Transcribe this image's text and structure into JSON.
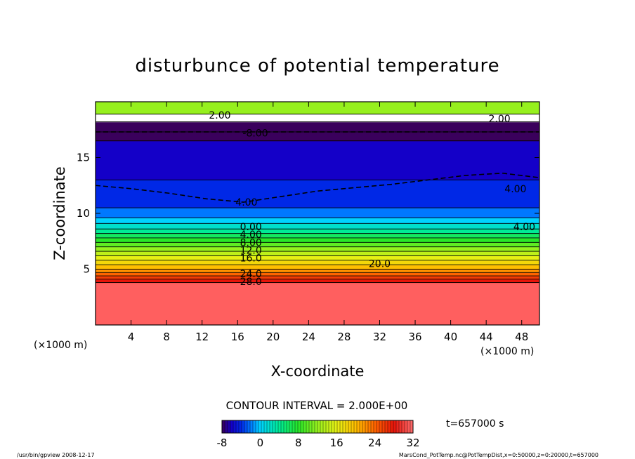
{
  "chart_data": {
    "type": "heatmap",
    "title": "disturbunce of potential temperature",
    "xlabel": "X-coordinate",
    "ylabel": "Z-coordinate",
    "x_unit": "(×1000 m)",
    "y_unit": "(×1000 m)",
    "xlim": [
      0,
      50
    ],
    "ylim": [
      0,
      20
    ],
    "x_ticks": [
      4,
      8,
      12,
      16,
      20,
      24,
      28,
      32,
      36,
      40,
      44,
      48
    ],
    "y_ticks": [
      5,
      10,
      15
    ],
    "contour_interval_text": "CONTOUR INTERVAL = 2.000E+00",
    "time_text": "t=657000 s",
    "colorbar": {
      "min": -8,
      "max": 32,
      "ticks": [
        -8,
        0,
        8,
        16,
        24,
        32
      ]
    },
    "contour_labels": [
      {
        "text": "-8.00",
        "x": 18.0,
        "z": 17.2
      },
      {
        "text": "2.00",
        "x": 14.0,
        "z": 18.8
      },
      {
        "text": "2.00",
        "x": 45.5,
        "z": 18.5
      },
      {
        "text": "4.00",
        "x": 17.0,
        "z": 11.0
      },
      {
        "text": "4.00",
        "x": 47.3,
        "z": 12.2
      },
      {
        "text": "4.00",
        "x": 48.3,
        "z": 8.8
      },
      {
        "text": "0.00",
        "x": 17.5,
        "z": 8.8
      },
      {
        "text": "4.00",
        "x": 17.5,
        "z": 8.1
      },
      {
        "text": "8.00",
        "x": 17.5,
        "z": 7.4
      },
      {
        "text": "12.0",
        "x": 17.5,
        "z": 6.7
      },
      {
        "text": "16.0",
        "x": 17.5,
        "z": 6.0
      },
      {
        "text": "20.0",
        "x": 32.0,
        "z": 5.5
      },
      {
        "text": "24.0",
        "x": 17.5,
        "z": 4.6
      },
      {
        "text": "28.0",
        "x": 17.5,
        "z": 3.9
      }
    ],
    "layers": [
      {
        "z0": 0.0,
        "z1": 3.8,
        "value": 30
      },
      {
        "z0": 3.8,
        "z1": 4.1,
        "value": 28
      },
      {
        "z0": 4.1,
        "z1": 4.4,
        "value": 26
      },
      {
        "z0": 4.4,
        "z1": 4.7,
        "value": 24
      },
      {
        "z0": 4.7,
        "z1": 5.0,
        "value": 22
      },
      {
        "z0": 5.0,
        "z1": 5.4,
        "value": 20
      },
      {
        "z0": 5.4,
        "z1": 5.8,
        "value": 18
      },
      {
        "z0": 5.8,
        "z1": 6.2,
        "value": 16
      },
      {
        "z0": 6.2,
        "z1": 6.6,
        "value": 14
      },
      {
        "z0": 6.6,
        "z1": 7.0,
        "value": 12
      },
      {
        "z0": 7.0,
        "z1": 7.4,
        "value": 10
      },
      {
        "z0": 7.4,
        "z1": 7.8,
        "value": 8
      },
      {
        "z0": 7.8,
        "z1": 8.2,
        "value": 6
      },
      {
        "z0": 8.2,
        "z1": 8.6,
        "value": 4
      },
      {
        "z0": 8.6,
        "z1": 9.1,
        "value": 2
      },
      {
        "z0": 9.1,
        "z1": 9.6,
        "value": 0
      },
      {
        "z0": 9.6,
        "z1": 10.5,
        "value": -2
      },
      {
        "z0": 10.5,
        "z1": 13.0,
        "value": -4
      },
      {
        "z0": 13.0,
        "z1": 16.5,
        "value": -6
      },
      {
        "z0": 16.5,
        "z1": 17.3,
        "value": -8
      },
      {
        "z0": 17.3,
        "z1": 18.2,
        "value": -12
      },
      {
        "z0": 18.2,
        "z1": 18.9,
        "value": null
      },
      {
        "z0": 18.9,
        "z1": 20.0,
        "value": 12
      }
    ],
    "dashed_contours": [
      {
        "value": -4,
        "z": [
          12.5,
          12.2,
          11.8,
          11.3,
          11.0,
          11.5,
          12.0,
          12.3,
          12.6,
          13.0,
          13.4,
          13.6,
          13.2
        ]
      },
      {
        "value": -8,
        "z": [
          17.3,
          17.3,
          17.3,
          17.3,
          17.3,
          17.3,
          17.3,
          17.3,
          17.3,
          17.3,
          17.3,
          17.3,
          17.3
        ]
      }
    ],
    "grid": false
  },
  "footer": {
    "left": "/usr/bin/gpview   2008-12-17",
    "right": "MarsCond_PotTemp.nc@PotTempDist,x=0:50000,z=0:20000,t=657000"
  }
}
